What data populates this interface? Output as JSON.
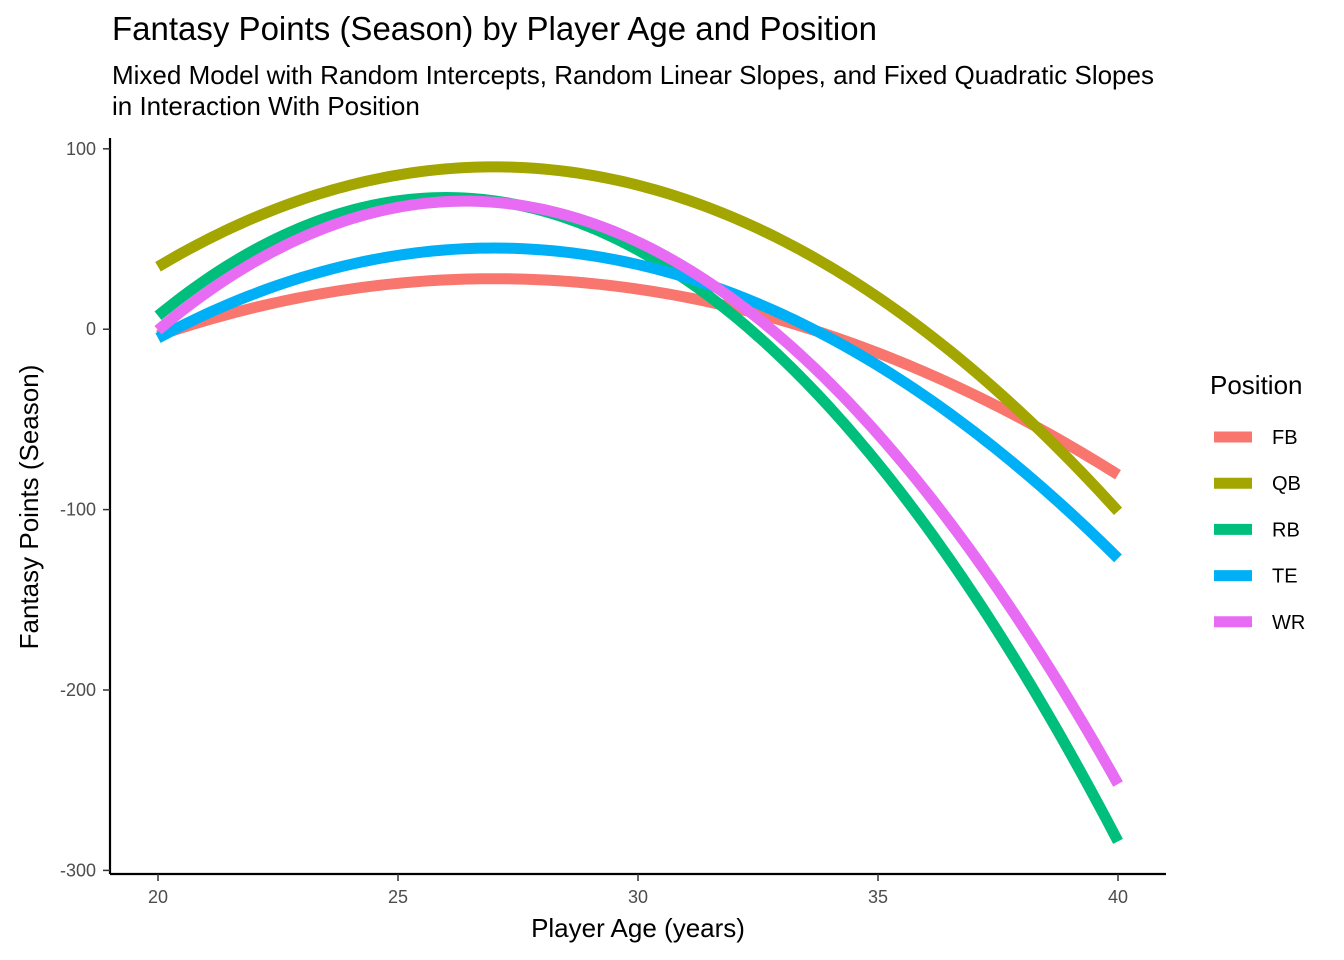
{
  "chart_data": {
    "type": "line",
    "title": "Fantasy Points (Season) by Player Age and Position",
    "subtitle_lines": [
      "Mixed Model with Random Intercepts, Random Linear Slopes, and Fixed Quadratic Slopes",
      "in Interaction With Position"
    ],
    "xlabel": "Player Age (years)",
    "ylabel": "Fantasy Points (Season)",
    "xlim": [
      19,
      41
    ],
    "ylim": [
      -302,
      106
    ],
    "xticks": [
      20,
      25,
      30,
      35,
      40
    ],
    "xtick_labels": [
      "20",
      "25",
      "30",
      "35",
      "40"
    ],
    "yticks": [
      100,
      0,
      -100,
      -200,
      -300
    ],
    "ytick_labels": [
      "100",
      "0",
      "-100",
      "-200",
      "-300"
    ],
    "grid": false,
    "legend": {
      "title": "Position",
      "placement": "right"
    },
    "series": [
      {
        "name": "FB",
        "color": "#F8766D",
        "quadratic": {
          "vertex_x": 27.0,
          "vertex_y": 28,
          "curvature": -0.643
        },
        "x_range": [
          20,
          40
        ]
      },
      {
        "name": "QB",
        "color": "#A3A500",
        "quadratic": {
          "vertex_x": 27.0,
          "vertex_y": 90,
          "curvature": -1.13
        },
        "x_range": [
          20,
          40
        ]
      },
      {
        "name": "RB",
        "color": "#00BF7D",
        "quadratic": {
          "vertex_x": 26.0,
          "vertex_y": 73,
          "curvature": -1.821
        },
        "x_range": [
          20,
          40
        ]
      },
      {
        "name": "TE",
        "color": "#00B0F6",
        "quadratic": {
          "vertex_x": 27.0,
          "vertex_y": 45,
          "curvature": -1.018
        },
        "x_range": [
          20,
          40
        ]
      },
      {
        "name": "WR",
        "color": "#E76BF3",
        "quadratic": {
          "vertex_x": 26.4,
          "vertex_y": 71,
          "curvature": -1.747
        },
        "x_range": [
          20,
          40
        ]
      }
    ]
  }
}
